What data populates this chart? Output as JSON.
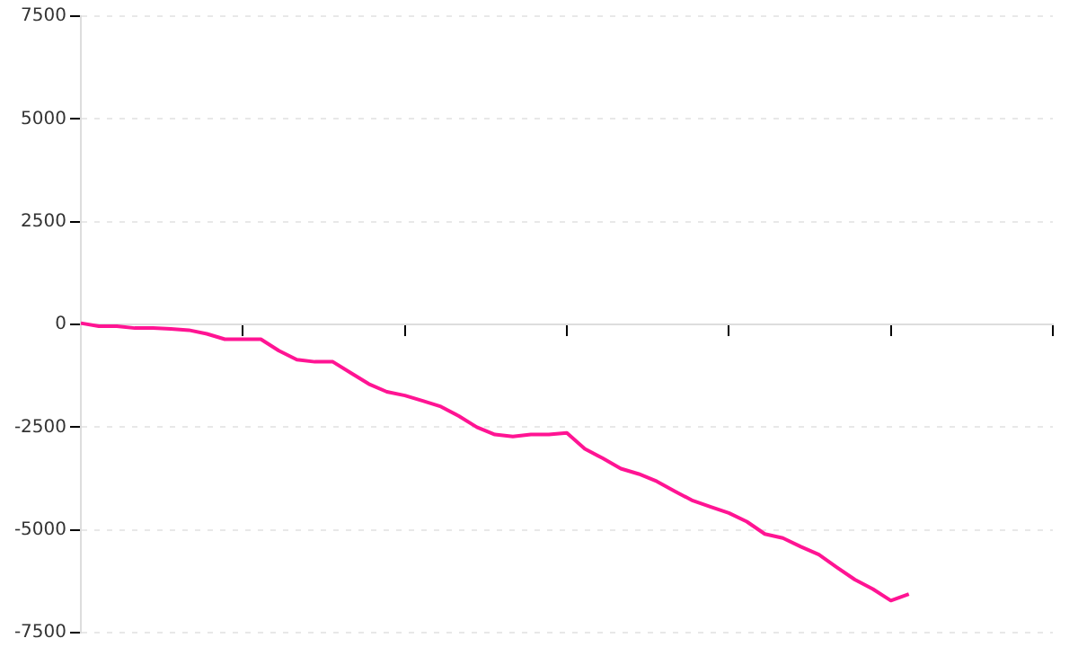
{
  "chart_data": {
    "type": "line",
    "categories": [
      null,
      null,
      null,
      null,
      null,
      null,
      null,
      null,
      null,
      null,
      null,
      null,
      null,
      null,
      null,
      null,
      null,
      null,
      null,
      null,
      null,
      null,
      null,
      null,
      null,
      null,
      null,
      null,
      null,
      null,
      null,
      null,
      null,
      null,
      null,
      null,
      null,
      null,
      null,
      null,
      null,
      null,
      null,
      null,
      null,
      null,
      null,
      null,
      null,
      null,
      null,
      null,
      null,
      null,
      null
    ],
    "series": [
      {
        "color": "#ff1493",
        "values": [
          30,
          -45,
          -45,
          -90,
          -90,
          -110,
          -140,
          -230,
          -360,
          -360,
          -360,
          -640,
          -860,
          -910,
          -910,
          -1180,
          -1450,
          -1640,
          -1730,
          -1860,
          -2000,
          -2230,
          -2500,
          -2680,
          -2730,
          -2680,
          -2680,
          -2640,
          -3030,
          -3260,
          -3510,
          -3640,
          -3820,
          -4060,
          -4290,
          -4440,
          -4590,
          -4800,
          -5100,
          -5200,
          -5410,
          -5600,
          -5910,
          -6210,
          -6440,
          -6720,
          -6560,
          null,
          null,
          null,
          null,
          null,
          null,
          null,
          null
        ]
      }
    ],
    "ylim": [
      -7500,
      7500
    ],
    "yticks": [
      -7500,
      -5000,
      -2500,
      0,
      2500,
      5000,
      7500
    ],
    "grid": "y",
    "tick_labels": "y"
  }
}
